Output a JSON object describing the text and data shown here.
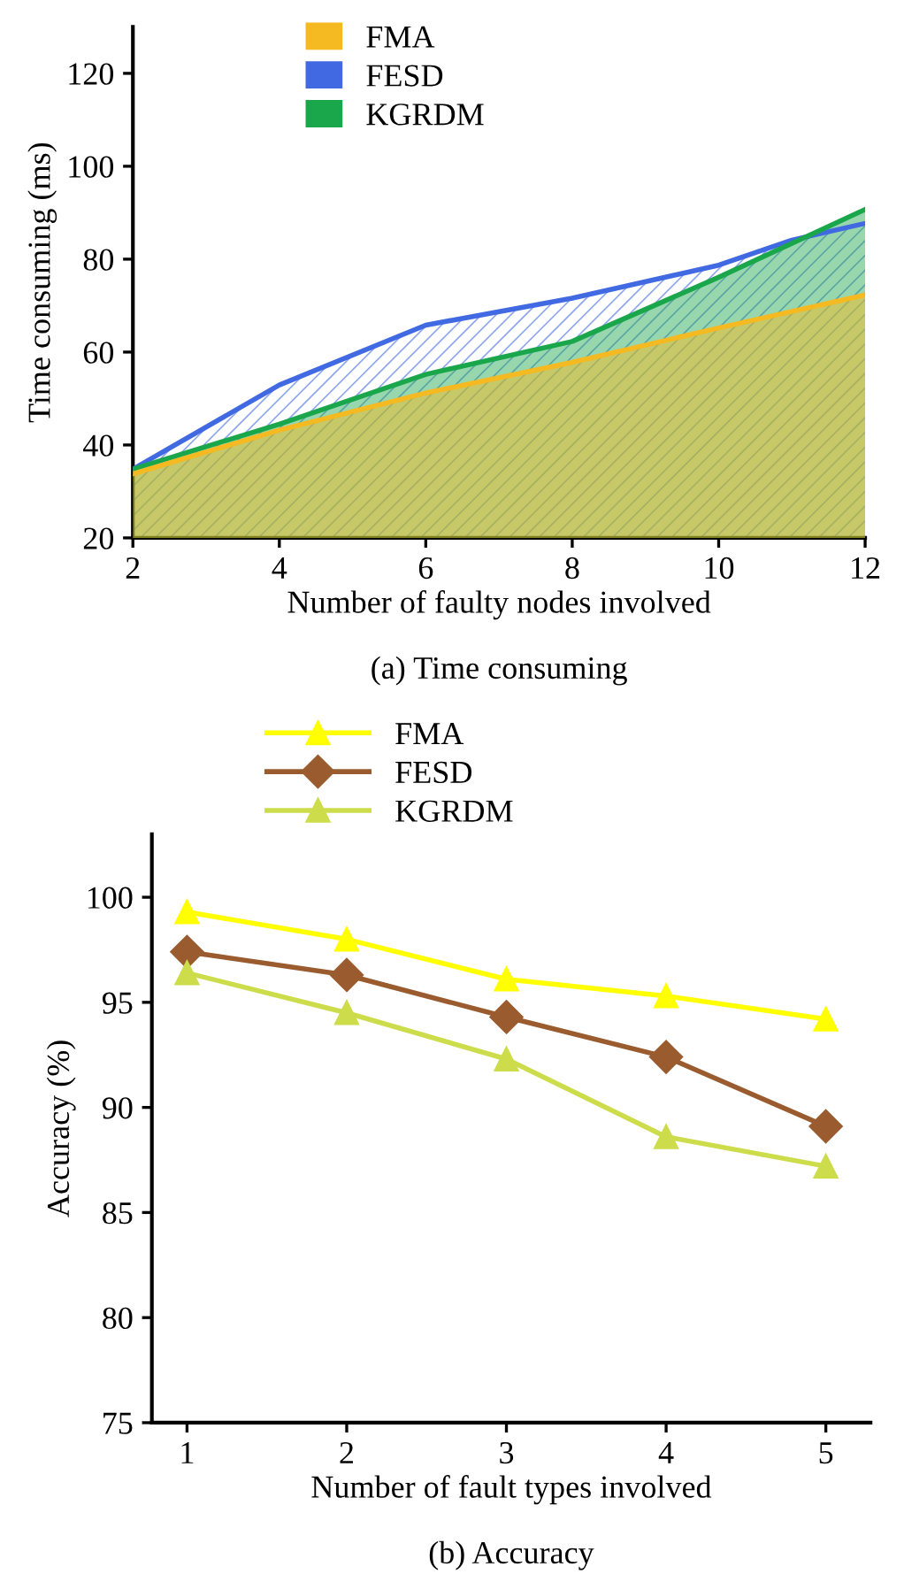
{
  "chart_data": [
    {
      "type": "area",
      "xlabel": "Number of faulty nodes involved",
      "ylabel": "Time consuming (ms)",
      "annotations": [
        "(a) Time consuming"
      ],
      "xlim": [
        2,
        12
      ],
      "xticks": [
        2,
        4,
        6,
        8,
        10,
        12
      ],
      "ylim": [
        20,
        130
      ],
      "yticks": [
        20,
        40,
        60,
        80,
        100,
        120
      ],
      "grid": false,
      "legend": "top left",
      "series": [
        {
          "name": "FESD",
          "color": "#4169e1",
          "x": [
            2,
            4,
            6,
            8,
            10,
            11,
            12
          ],
          "values": [
            34.8,
            52.9,
            65.8,
            71.6,
            78.7,
            84.1,
            87.7
          ]
        },
        {
          "name": "KGRDM",
          "color": "#1aa64a",
          "x": [
            2,
            4,
            6,
            8,
            10,
            12
          ],
          "values": [
            34.8,
            44.5,
            55.2,
            62.3,
            76.1,
            90.7
          ]
        },
        {
          "name": "FMA",
          "color": "#f5b921",
          "x": [
            2,
            4,
            6,
            8,
            10,
            12
          ],
          "values": [
            33.8,
            43.2,
            51.2,
            57.8,
            65.2,
            72.3
          ]
        }
      ]
    },
    {
      "type": "line",
      "xlabel": "Number of fault types involved",
      "ylabel": "Accuracy (%)",
      "annotations": [
        "(b) Accuracy"
      ],
      "xlim": [
        0.78,
        5.28
      ],
      "xticks": [
        1,
        2,
        3,
        4,
        5
      ],
      "ylim": [
        75,
        103
      ],
      "yticks": [
        75,
        80,
        85,
        90,
        95,
        100
      ],
      "grid": false,
      "legend": "top left",
      "series": [
        {
          "name": "FMA",
          "color": "#ffff00",
          "marker": "triangle",
          "x": [
            1,
            2,
            3,
            4,
            5
          ],
          "values": [
            99.3,
            98.0,
            96.1,
            95.3,
            94.2
          ]
        },
        {
          "name": "FESD",
          "color": "#9a5b2e",
          "marker": "diamond",
          "x": [
            1,
            2,
            3,
            4,
            5
          ],
          "values": [
            97.4,
            96.3,
            94.3,
            92.4,
            89.1
          ]
        },
        {
          "name": "KGRDM",
          "color": "#cddc4a",
          "marker": "triangle",
          "x": [
            1,
            2,
            3,
            4,
            5
          ],
          "values": [
            96.4,
            94.5,
            92.3,
            88.6,
            87.2
          ]
        }
      ]
    }
  ]
}
